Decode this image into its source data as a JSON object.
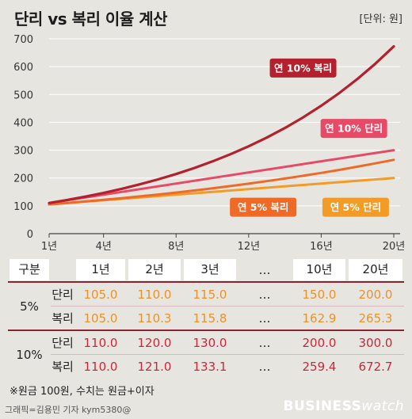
{
  "header": {
    "title": "단리 vs 복리 이율 계산",
    "unit": "[단위: 원]"
  },
  "colors": {
    "compound10": "#b3202e",
    "simple10": "#e64a66",
    "compound5": "#ef6a26",
    "simple5": "#f39b27"
  },
  "chart_data": {
    "type": "line",
    "title": "단리 vs 복리 이율 계산",
    "ylabel": "[단위: 원]",
    "xlim": [
      1,
      20
    ],
    "ylim": [
      0,
      700
    ],
    "x_ticks": [
      "1년",
      "4년",
      "8년",
      "12년",
      "16년",
      "20년"
    ],
    "x_tick_values": [
      1,
      4,
      8,
      12,
      16,
      20
    ],
    "y_ticks": [
      0,
      100,
      200,
      300,
      400,
      500,
      600,
      700
    ],
    "grid": "horizontal",
    "series": [
      {
        "name": "연 10% 복리",
        "x": [
          1,
          2,
          3,
          4,
          5,
          6,
          7,
          8,
          9,
          10,
          11,
          12,
          13,
          14,
          15,
          16,
          17,
          18,
          19,
          20
        ],
        "values": [
          110.0,
          121.0,
          133.1,
          146.4,
          161.1,
          177.2,
          194.9,
          214.4,
          235.8,
          259.4,
          285.3,
          313.8,
          345.2,
          379.7,
          417.7,
          459.5,
          505.4,
          556.0,
          611.6,
          672.7
        ]
      },
      {
        "name": "연 10% 단리",
        "x": [
          1,
          20
        ],
        "values": [
          110.0,
          300.0
        ]
      },
      {
        "name": "연 5% 복리",
        "x": [
          1,
          2,
          3,
          4,
          5,
          6,
          7,
          8,
          9,
          10,
          11,
          12,
          13,
          14,
          15,
          16,
          17,
          18,
          19,
          20
        ],
        "values": [
          105.0,
          110.3,
          115.8,
          121.6,
          127.6,
          134.0,
          140.7,
          147.7,
          155.1,
          162.9,
          171.0,
          179.6,
          188.6,
          198.0,
          207.9,
          218.3,
          229.2,
          240.7,
          252.7,
          265.3
        ]
      },
      {
        "name": "연 5% 단리",
        "x": [
          1,
          20
        ],
        "values": [
          105.0,
          200.0
        ]
      }
    ],
    "annotations": [
      {
        "text": "연 10% 복리",
        "x": 15,
        "y": 595
      },
      {
        "text": "연 10% 단리",
        "x": 17.8,
        "y": 378
      },
      {
        "text": "연 5% 복리",
        "x": 12.8,
        "y": 95
      },
      {
        "text": "연 5% 단리",
        "x": 17.9,
        "y": 95
      }
    ]
  },
  "table": {
    "header": [
      "구분",
      "1년",
      "2년",
      "3년",
      "…",
      "10년",
      "20년"
    ],
    "groups": [
      {
        "label": "5%",
        "rows": [
          {
            "kind": "단리",
            "values": [
              "105.0",
              "110.0",
              "115.0",
              "…",
              "150.0",
              "200.0"
            ]
          },
          {
            "kind": "복리",
            "values": [
              "105.0",
              "110.3",
              "115.8",
              "…",
              "162.9",
              "265.3"
            ]
          }
        ]
      },
      {
        "label": "10%",
        "rows": [
          {
            "kind": "단리",
            "values": [
              "110.0",
              "120.0",
              "130.0",
              "…",
              "200.0",
              "300.0"
            ]
          },
          {
            "kind": "복리",
            "values": [
              "110.0",
              "121.0",
              "133.1",
              "…",
              "259.4",
              "672.7"
            ]
          }
        ]
      }
    ]
  },
  "footer": {
    "note": "※원금 100원, 수치는 원금+이자",
    "credit": "그래픽=김용민 기자 kym5380@",
    "brand_bold": "BUSINESS",
    "brand_light": "watch"
  }
}
